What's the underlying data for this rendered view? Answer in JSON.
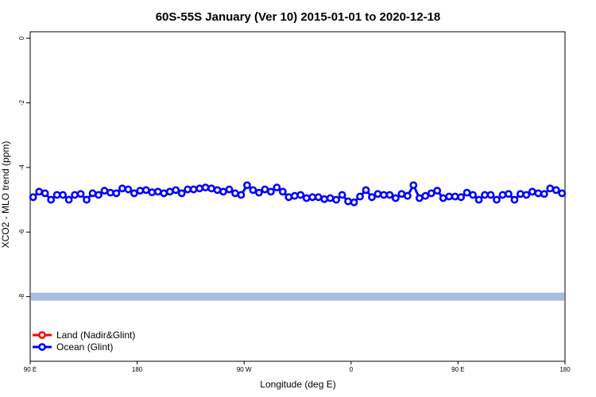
{
  "chart_data": {
    "type": "line",
    "title": "60S-55S January (Ver 10)   2015-01-01 to 2020-12-18",
    "xlabel": "Longitude (deg E)",
    "ylabel": "XCO2 - MLO trend (ppm)",
    "xlim": [
      90,
      450
    ],
    "ylim": [
      -10,
      0.2
    ],
    "x_ticks": [
      {
        "value": 90,
        "label": "90 E"
      },
      {
        "value": 162,
        "label": "180"
      },
      {
        "value": 234,
        "label": "90 W"
      },
      {
        "value": 306,
        "label": "0"
      },
      {
        "value": 378,
        "label": "90 E"
      },
      {
        "value": 450,
        "label": "180"
      }
    ],
    "y_ticks": [
      {
        "value": 0,
        "label": "0"
      },
      {
        "value": -2,
        "label": "-2"
      },
      {
        "value": -4,
        "label": "-4"
      },
      {
        "value": -6,
        "label": "-6"
      },
      {
        "value": -8,
        "label": "-8"
      }
    ],
    "grid": false,
    "legend_position": "bottom-left",
    "series": [
      {
        "name": "Land (Nadir&Glint)",
        "color": "#ff0000",
        "x": [],
        "values": []
      },
      {
        "name": "Ocean (Glint)",
        "color": "#0000ff",
        "x": [
          92,
          96,
          100,
          104,
          108,
          112,
          116,
          120,
          124,
          128,
          132,
          136,
          140,
          144,
          148,
          152,
          156,
          160,
          164,
          168,
          172,
          176,
          180,
          184,
          188,
          192,
          196,
          200,
          204,
          208,
          212,
          216,
          220,
          224,
          228,
          232,
          236,
          240,
          244,
          248,
          252,
          256,
          260,
          264,
          268,
          272,
          276,
          280,
          284,
          288,
          292,
          296,
          300,
          304,
          308,
          312,
          316,
          320,
          324,
          328,
          332,
          336,
          340,
          344,
          348,
          352,
          356,
          360,
          364,
          368,
          372,
          376,
          380,
          384,
          388,
          392,
          396,
          400,
          404,
          408,
          412,
          416,
          420,
          424,
          428,
          432,
          436,
          440,
          444,
          448
        ],
        "values": [
          -4.92,
          -4.75,
          -4.8,
          -5.0,
          -4.85,
          -4.85,
          -5.0,
          -4.85,
          -4.82,
          -5.0,
          -4.8,
          -4.85,
          -4.72,
          -4.78,
          -4.8,
          -4.65,
          -4.68,
          -4.8,
          -4.72,
          -4.7,
          -4.77,
          -4.75,
          -4.8,
          -4.75,
          -4.7,
          -4.8,
          -4.68,
          -4.68,
          -4.65,
          -4.62,
          -4.65,
          -4.7,
          -4.75,
          -4.68,
          -4.8,
          -4.85,
          -4.55,
          -4.7,
          -4.78,
          -4.68,
          -4.75,
          -4.62,
          -4.75,
          -4.92,
          -4.88,
          -4.85,
          -4.95,
          -4.92,
          -4.92,
          -4.98,
          -4.95,
          -5.0,
          -4.85,
          -5.05,
          -5.08,
          -4.9,
          -4.7,
          -4.92,
          -4.82,
          -4.85,
          -4.85,
          -4.95,
          -4.82,
          -4.88,
          -4.55,
          -4.95,
          -4.88,
          -4.8,
          -4.72,
          -4.95,
          -4.9,
          -4.9,
          -4.92,
          -4.78,
          -4.85,
          -5.0,
          -4.85,
          -4.85,
          -5.0,
          -4.85,
          -4.82,
          -5.0,
          -4.82,
          -4.85,
          -4.75,
          -4.8,
          -4.82,
          -4.65,
          -4.7,
          -4.8
        ]
      }
    ],
    "reference_band": {
      "y": -8.0,
      "color": "#a7bde0"
    }
  }
}
